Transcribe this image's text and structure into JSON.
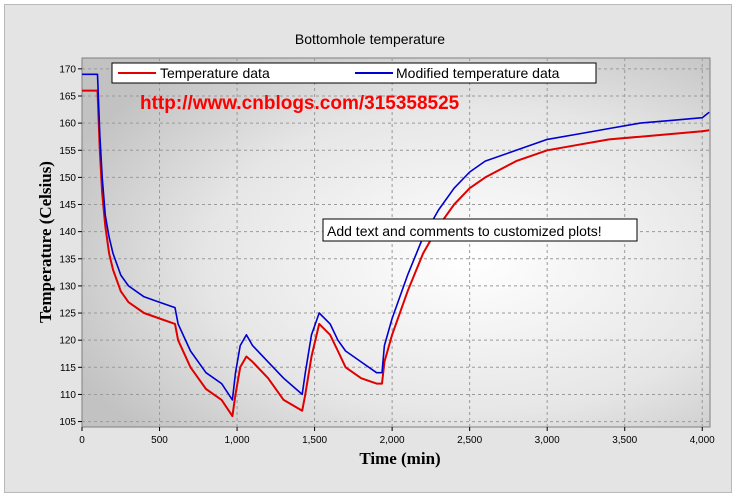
{
  "chart_data": {
    "type": "line",
    "title": "Bottomhole temperature",
    "xlabel": "Time (min)",
    "ylabel": "Temperature (Celsius)",
    "xlim": [
      0,
      4050
    ],
    "ylim": [
      104,
      172
    ],
    "x_ticks": [
      0,
      500,
      1000,
      1500,
      2000,
      2500,
      3000,
      3500,
      4000
    ],
    "x_tick_labels": [
      "0",
      "500",
      "1,000",
      "1,500",
      "2,000",
      "2,500",
      "3,000",
      "3,500",
      "4,000"
    ],
    "y_ticks": [
      105,
      110,
      115,
      120,
      125,
      130,
      135,
      140,
      145,
      150,
      155,
      160,
      165,
      170
    ],
    "grid": true,
    "legend_position": "top",
    "series": [
      {
        "name": "Temperature data",
        "color": "#e00000",
        "x": [
          0,
          100,
          115,
          130,
          150,
          175,
          200,
          250,
          300,
          400,
          500,
          600,
          620,
          700,
          800,
          900,
          970,
          990,
          1020,
          1060,
          1100,
          1200,
          1300,
          1420,
          1440,
          1480,
          1530,
          1600,
          1650,
          1700,
          1800,
          1900,
          1935,
          1950,
          2000,
          2100,
          2200,
          2300,
          2400,
          2500,
          2600,
          2800,
          3000,
          3200,
          3400,
          3600,
          3800,
          4000,
          4045
        ],
        "y": [
          166,
          166,
          155,
          147,
          141,
          136,
          133,
          129,
          127,
          125,
          124,
          123,
          120,
          115,
          111,
          109,
          106,
          110,
          115,
          117,
          116,
          113,
          109,
          107,
          110,
          117,
          123,
          121,
          118,
          115,
          113,
          112,
          112,
          116,
          121,
          129,
          136,
          141,
          145,
          148,
          150,
          153,
          155,
          156,
          157,
          157.5,
          158,
          158.5,
          158.7
        ]
      },
      {
        "name": "Modified temperature data",
        "color": "#0000d0",
        "x": [
          0,
          100,
          115,
          130,
          150,
          175,
          200,
          250,
          300,
          400,
          500,
          600,
          620,
          700,
          800,
          900,
          970,
          990,
          1020,
          1060,
          1100,
          1200,
          1300,
          1420,
          1440,
          1480,
          1530,
          1600,
          1650,
          1700,
          1800,
          1900,
          1935,
          1950,
          2000,
          2100,
          2200,
          2300,
          2400,
          2500,
          2600,
          2800,
          3000,
          3200,
          3400,
          3600,
          3800,
          4000,
          4045
        ],
        "y": [
          169,
          169,
          158,
          150,
          143,
          139,
          136,
          132,
          130,
          128,
          127,
          126,
          123,
          118,
          114,
          112,
          109,
          114,
          119,
          121,
          119,
          116,
          113,
          110,
          114,
          121,
          125,
          123,
          120,
          118,
          116,
          114,
          114,
          119,
          124,
          132,
          139,
          144,
          148,
          151,
          153,
          155,
          157,
          158,
          159,
          160,
          160.5,
          161,
          162
        ]
      }
    ],
    "annotations": [
      "http://www.cnblogs.com/315358525",
      "Add text and comments to customized plots!"
    ]
  }
}
